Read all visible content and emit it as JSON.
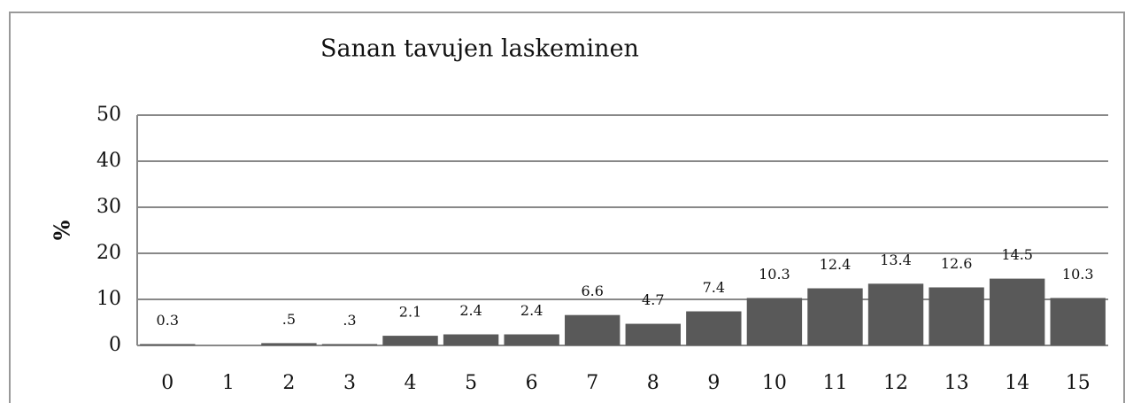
{
  "chart_data": {
    "type": "bar",
    "title": "Sanan tavujen laskeminen",
    "y_label": "%",
    "categories": [
      "0",
      "1",
      "2",
      "3",
      "4",
      "5",
      "6",
      "7",
      "8",
      "9",
      "10",
      "11",
      "12",
      "13",
      "14",
      "15"
    ],
    "values": [
      0.3,
      0,
      0.5,
      0.3,
      2.1,
      2.4,
      2.4,
      6.6,
      4.7,
      7.4,
      10.3,
      12.4,
      13.4,
      12.6,
      14.5,
      10.3
    ],
    "value_labels": [
      "0.3",
      null,
      ".5",
      ".3",
      "2.1",
      "2.4",
      "2.4",
      "6.6",
      "4.7",
      "7.4",
      "10.3",
      "12.4",
      "13.4",
      "12.6",
      "14.5",
      "10.3"
    ],
    "color": "#595959",
    "ylim": [
      0,
      50
    ],
    "yticks": [
      0,
      10,
      20,
      30,
      40,
      50
    ],
    "grid": true
  }
}
